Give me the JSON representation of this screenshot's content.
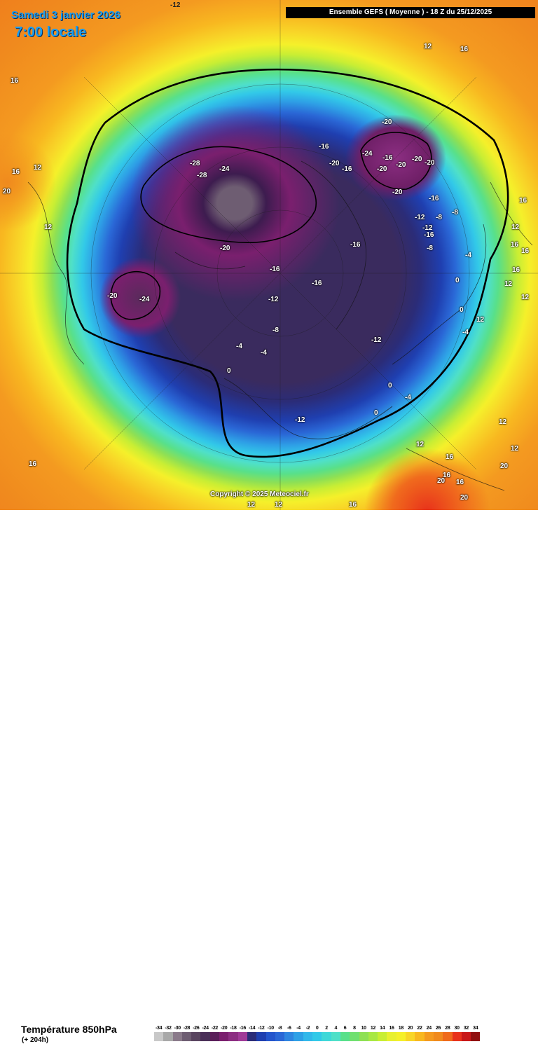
{
  "header": {
    "date": "Samedi 3 janvier 2026",
    "time": "7:00 locale",
    "run_info": "Ensemble GEFS ( Moyenne ) - 18 Z du 25/12/2025"
  },
  "copyright": "Copyright © 2025 Meteociel.fr",
  "field": {
    "title": "Température 850hPa",
    "lead_time": "(+ 204h)"
  },
  "colorbar": {
    "ticks": [
      "-34",
      "-32",
      "-30",
      "-28",
      "-26",
      "-24",
      "-22",
      "-20",
      "-18",
      "-16",
      "-14",
      "-12",
      "-10",
      "-8",
      "-6",
      "-4",
      "-2",
      "0",
      "2",
      "4",
      "6",
      "8",
      "10",
      "12",
      "14",
      "16",
      "18",
      "20",
      "22",
      "24",
      "26",
      "28",
      "30",
      "32",
      "34"
    ],
    "colors": [
      "#c8c8c8",
      "#a8a8a8",
      "#8a7a8a",
      "#6e5d72",
      "#5a4560",
      "#4a2f58",
      "#5a1f5a",
      "#7a1f6e",
      "#8c2e82",
      "#a03a98",
      "#2b2c78",
      "#1f3fb0",
      "#2455cc",
      "#2a67d6",
      "#2e85e0",
      "#2ea0e6",
      "#32b8ea",
      "#32c9e8",
      "#3fd8d8",
      "#4fe0c8",
      "#58e08a",
      "#70e070",
      "#8ee054",
      "#a8e844",
      "#c8ee34",
      "#e8f030",
      "#f5f02a",
      "#f8d628",
      "#f8b820",
      "#f49a20",
      "#f08a1e",
      "#ef6a1c",
      "#e8321b",
      "#c81818",
      "#901010"
    ]
  },
  "contour_labels": [
    {
      "text": "-12"
    },
    {
      "text": "16"
    },
    {
      "text": "12"
    },
    {
      "text": "16"
    },
    {
      "text": "16"
    },
    {
      "text": "12"
    },
    {
      "text": "20"
    },
    {
      "text": "12"
    },
    {
      "text": "-28"
    },
    {
      "text": "-28"
    },
    {
      "text": "-24"
    },
    {
      "text": "-16"
    },
    {
      "text": "-20"
    },
    {
      "text": "-16"
    },
    {
      "text": "-20"
    },
    {
      "text": "-24"
    },
    {
      "text": "-16"
    },
    {
      "text": "-20"
    },
    {
      "text": "-20"
    },
    {
      "text": "-20"
    },
    {
      "text": "-20"
    },
    {
      "text": "-20"
    },
    {
      "text": "-16"
    },
    {
      "text": "-8"
    },
    {
      "text": "-12"
    },
    {
      "text": "-8"
    },
    {
      "text": "-12"
    },
    {
      "text": "-16"
    },
    {
      "text": "-8"
    },
    {
      "text": "-16"
    },
    {
      "text": "-20"
    },
    {
      "text": "-16"
    },
    {
      "text": "-16"
    },
    {
      "text": "-20"
    },
    {
      "text": "-24"
    },
    {
      "text": "-12"
    },
    {
      "text": "-8"
    },
    {
      "text": "-12"
    },
    {
      "text": "-4"
    },
    {
      "text": "-4"
    },
    {
      "text": "0"
    },
    {
      "text": "0"
    },
    {
      "text": "-4"
    },
    {
      "text": "0"
    },
    {
      "text": "-12"
    },
    {
      "text": "12"
    },
    {
      "text": "16"
    },
    {
      "text": "12"
    },
    {
      "text": "16"
    },
    {
      "text": "20"
    },
    {
      "text": "16"
    },
    {
      "text": "20"
    },
    {
      "text": "20"
    },
    {
      "text": "16"
    },
    {
      "text": "12"
    },
    {
      "text": "16"
    },
    {
      "text": "12"
    },
    {
      "text": "12"
    },
    {
      "text": "16"
    },
    {
      "text": "12"
    },
    {
      "text": "-4"
    },
    {
      "text": "0"
    },
    {
      "text": "0"
    },
    {
      "text": "-4"
    },
    {
      "text": "12"
    },
    {
      "text": "16"
    },
    {
      "text": "16"
    },
    {
      "text": "16"
    },
    {
      "text": "12"
    },
    {
      "text": "12"
    }
  ]
}
